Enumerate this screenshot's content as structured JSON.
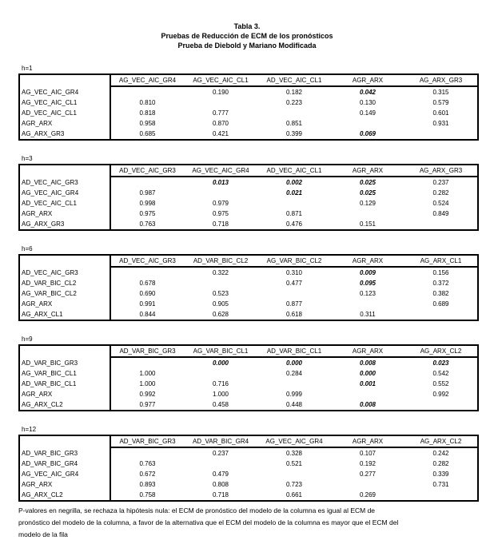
{
  "title": {
    "line1": "Tabla 3.",
    "line2": "Pruebas de Reducción de ECM de los pronósticos",
    "line3": "Prueba de Diebold y Mariano Modificada"
  },
  "tables": [
    {
      "h_label": "h=1",
      "columns": [
        "AG_VEC_AIC_GR4",
        "AG_VEC_AIC_CL1",
        "AD_VEC_AIC_CL1",
        "AGR_ARX",
        "AG_ARX_GR3"
      ],
      "rows": [
        {
          "label": "AG_VEC_AIC_GR4",
          "values": [
            "",
            "0.190",
            "0.182",
            "0.042",
            "0.315"
          ],
          "bold": [
            3
          ]
        },
        {
          "label": "AG_VEC_AIC_CL1",
          "values": [
            "0.810",
            "",
            "0.223",
            "0.130",
            "0.579"
          ],
          "bold": []
        },
        {
          "label": "AD_VEC_AIC_CL1",
          "values": [
            "0.818",
            "0.777",
            "",
            "0.149",
            "0.601"
          ],
          "bold": []
        },
        {
          "label": "AGR_ARX",
          "values": [
            "0.958",
            "0.870",
            "0.851",
            "",
            "0.931"
          ],
          "bold": []
        },
        {
          "label": "AG_ARX_GR3",
          "values": [
            "0.685",
            "0.421",
            "0.399",
            "0.069",
            ""
          ],
          "bold": [
            3
          ]
        }
      ]
    },
    {
      "h_label": "h=3",
      "columns": [
        "AD_VEC_AIC_GR3",
        "AG_VEC_AIC_GR4",
        "AD_VEC_AIC_CL1",
        "AGR_ARX",
        "AG_ARX_GR3"
      ],
      "rows": [
        {
          "label": "AD_VEC_AIC_GR3",
          "values": [
            "",
            "0.013",
            "0.002",
            "0.025",
            "0.237"
          ],
          "bold": [
            1,
            2,
            3
          ]
        },
        {
          "label": "AG_VEC_AIC_GR4",
          "values": [
            "0.987",
            "",
            "0.021",
            "0.025",
            "0.282"
          ],
          "bold": [
            2,
            3
          ]
        },
        {
          "label": "AD_VEC_AIC_CL1",
          "values": [
            "0.998",
            "0.979",
            "",
            "0.129",
            "0.524"
          ],
          "bold": []
        },
        {
          "label": "AGR_ARX",
          "values": [
            "0.975",
            "0.975",
            "0.871",
            "",
            "0.849"
          ],
          "bold": []
        },
        {
          "label": "AG_ARX_GR3",
          "values": [
            "0.763",
            "0.718",
            "0.476",
            "0.151",
            ""
          ],
          "bold": []
        }
      ]
    },
    {
      "h_label": "h=6",
      "columns": [
        "AD_VEC_AIC_GR3",
        "AD_VAR_BIC_CL2",
        "AG_VAR_BIC_CL2",
        "AGR_ARX",
        "AG_ARX_CL1"
      ],
      "rows": [
        {
          "label": "AD_VEC_AIC_GR3",
          "values": [
            "",
            "0.322",
            "0.310",
            "0.009",
            "0.156"
          ],
          "bold": [
            3
          ]
        },
        {
          "label": "AD_VAR_BIC_CL2",
          "values": [
            "0.678",
            "",
            "0.477",
            "0.095",
            "0.372"
          ],
          "bold": [
            3
          ]
        },
        {
          "label": "AG_VAR_BIC_CL2",
          "values": [
            "0.690",
            "0.523",
            "",
            "0.123",
            "0.382"
          ],
          "bold": []
        },
        {
          "label": "AGR_ARX",
          "values": [
            "0.991",
            "0.905",
            "0.877",
            "",
            "0.689"
          ],
          "bold": []
        },
        {
          "label": "AG_ARX_CL1",
          "values": [
            "0.844",
            "0.628",
            "0.618",
            "0.311",
            ""
          ],
          "bold": []
        }
      ]
    },
    {
      "h_label": "h=9",
      "columns": [
        "AD_VAR_BIC_GR3",
        "AG_VAR_BIC_CL1",
        "AD_VAR_BIC_CL1",
        "AGR_ARX",
        "AG_ARX_CL2"
      ],
      "rows": [
        {
          "label": "AD_VAR_BIC_GR3",
          "values": [
            "",
            "0.000",
            "0.000",
            "0.008",
            "0.023"
          ],
          "bold": [
            1,
            2,
            3,
            4
          ]
        },
        {
          "label": "AG_VAR_BIC_CL1",
          "values": [
            "1.000",
            "",
            "0.284",
            "0.000",
            "0.542"
          ],
          "bold": [
            3
          ]
        },
        {
          "label": "AD_VAR_BIC_CL1",
          "values": [
            "1.000",
            "0.716",
            "",
            "0.001",
            "0.552"
          ],
          "bold": [
            3
          ]
        },
        {
          "label": "AGR_ARX",
          "values": [
            "0.992",
            "1.000",
            "0.999",
            "",
            "0.992"
          ],
          "bold": []
        },
        {
          "label": "AG_ARX_CL2",
          "values": [
            "0.977",
            "0.458",
            "0.448",
            "0.008",
            ""
          ],
          "bold": [
            3
          ]
        }
      ]
    },
    {
      "h_label": "h=12",
      "columns": [
        "AD_VAR_BIC_GR3",
        "AD_VAR_BIC_GR4",
        "AG_VEC_AIC_GR4",
        "AGR_ARX",
        "AG_ARX_CL2"
      ],
      "rows": [
        {
          "label": "AD_VAR_BIC_GR3",
          "values": [
            "",
            "0.237",
            "0.328",
            "0.107",
            "0.242"
          ],
          "bold": []
        },
        {
          "label": "AD_VAR_BIC_GR4",
          "values": [
            "0.763",
            "",
            "0.521",
            "0.192",
            "0.282"
          ],
          "bold": []
        },
        {
          "label": "AG_VEC_AIC_GR4",
          "values": [
            "0.672",
            "0.479",
            "",
            "0.277",
            "0.339"
          ],
          "bold": []
        },
        {
          "label": "AGR_ARX",
          "values": [
            "0.893",
            "0.808",
            "0.723",
            "",
            "0.731"
          ],
          "bold": []
        },
        {
          "label": "AG_ARX_CL2",
          "values": [
            "0.758",
            "0.718",
            "0.661",
            "0.269",
            ""
          ],
          "bold": []
        }
      ]
    }
  ],
  "footnote": {
    "line1": "P-valores en negrilla, se rechaza la hipótesis nula: el ECM de pronóstico del modelo de la columna es igual al ECM de",
    "line2": "pronóstico del modelo de la columna, a favor de la alternativa que el ECM del modelo de la columna es mayor que el ECM del",
    "line3": "modelo de la fila"
  }
}
